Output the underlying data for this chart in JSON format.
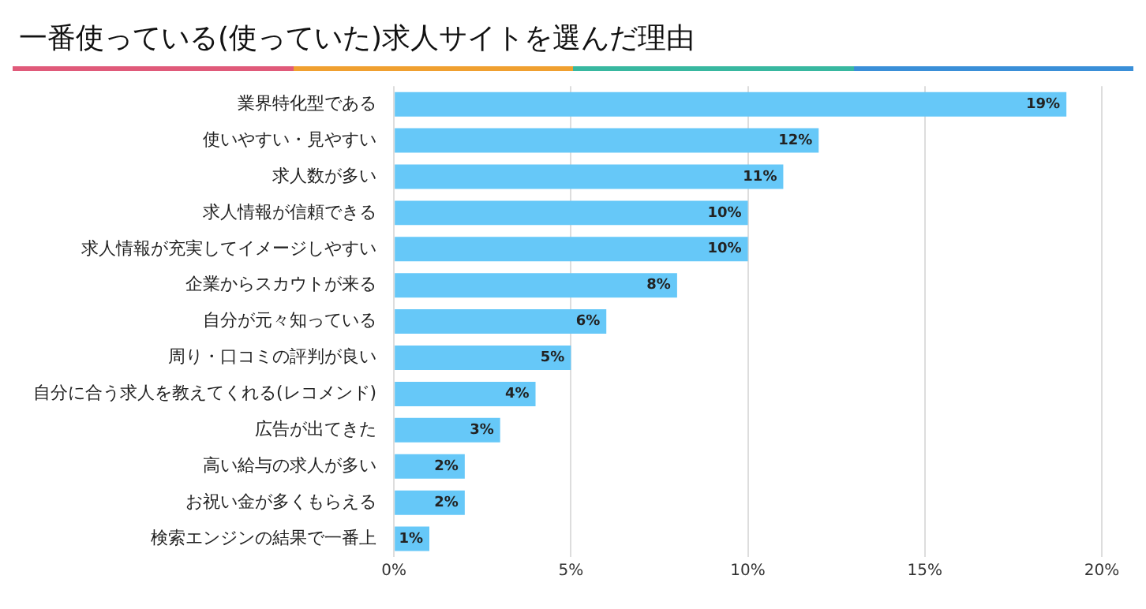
{
  "chart_data": {
    "type": "bar",
    "orientation": "horizontal",
    "title": "一番使っている(使っていた)求人サイトを選んだ理由",
    "categories": [
      "業界特化型である",
      "使いやすい・見やすい",
      "求人数が多い",
      "求人情報が信頼できる",
      "求人情報が充実してイメージしやすい",
      "企業からスカウトが来る",
      "自分が元々知っている",
      "周り・口コミの評判が良い",
      "自分に合う求人を教えてくれる(レコメンド)",
      "広告が出てきた",
      "高い給与の求人が多い",
      "お祝い金が多くもらえる",
      "検索エンジンの結果で一番上"
    ],
    "values": [
      19,
      12,
      11,
      10,
      10,
      8,
      6,
      5,
      4,
      3,
      2,
      2,
      1
    ],
    "value_labels": [
      "19%",
      "12%",
      "11%",
      "10%",
      "10%",
      "8%",
      "6%",
      "5%",
      "4%",
      "3%",
      "2%",
      "2%",
      "1%"
    ],
    "color": "#66c8f8",
    "xlim": [
      0,
      20
    ],
    "xticks": [
      {
        "value": 0,
        "label": "0%"
      },
      {
        "value": 5,
        "label": "5%"
      },
      {
        "value": 10,
        "label": "10%"
      },
      {
        "value": 15,
        "label": "15%"
      },
      {
        "value": 20,
        "label": "20%"
      }
    ],
    "grid": "x",
    "legend": false
  }
}
